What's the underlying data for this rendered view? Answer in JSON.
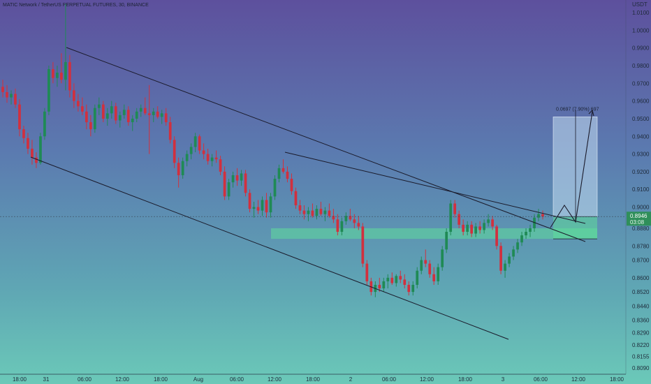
{
  "chart_data": {
    "type": "candlestick",
    "title": "MATIC Network / TetherUS PERPETUAL FUTURES, 30, BINANCE",
    "y_axis_label": "USDT",
    "y_ticks": [
      "1.0100",
      "1.0000",
      "0.9900",
      "0.9800",
      "0.9700",
      "0.9600",
      "0.9500",
      "0.9400",
      "0.9300",
      "0.9200",
      "0.9100",
      "0.9000",
      "0.8880",
      "0.8780",
      "0.8700",
      "0.8600",
      "0.8520",
      "0.8440",
      "0.8360",
      "0.8290",
      "0.8220",
      "0.8155",
      "0.8090"
    ],
    "x_ticks": [
      "18:00",
      "31",
      "06:00",
      "12:00",
      "18:00",
      "Aug",
      "06:00",
      "12:00",
      "18:00",
      "2",
      "06:00",
      "12:00",
      "18:00",
      "3",
      "06:00",
      "12:00",
      "18:00"
    ],
    "last_price": "0.8946",
    "countdown": "03:08",
    "projection_label": "0.0697 (7.90%) 697",
    "colors": {
      "up": "#1f8a55",
      "down": "#d1303e",
      "zone": "#5fdc9a",
      "projection": "#c3dcf0",
      "line": "#1a1a2a"
    },
    "series": [
      {
        "o": 0.968,
        "h": 0.972,
        "l": 0.962,
        "c": 0.965
      },
      {
        "o": 0.965,
        "h": 0.969,
        "l": 0.959,
        "c": 0.962
      },
      {
        "o": 0.962,
        "h": 0.966,
        "l": 0.958,
        "c": 0.964
      },
      {
        "o": 0.964,
        "h": 0.967,
        "l": 0.956,
        "c": 0.958
      },
      {
        "o": 0.958,
        "h": 0.961,
        "l": 0.94,
        "c": 0.944
      },
      {
        "o": 0.944,
        "h": 0.946,
        "l": 0.936,
        "c": 0.939
      },
      {
        "o": 0.939,
        "h": 0.942,
        "l": 0.93,
        "c": 0.933
      },
      {
        "o": 0.933,
        "h": 0.938,
        "l": 0.924,
        "c": 0.928
      },
      {
        "o": 0.928,
        "h": 0.931,
        "l": 0.922,
        "c": 0.925
      },
      {
        "o": 0.925,
        "h": 0.942,
        "l": 0.924,
        "c": 0.94
      },
      {
        "o": 0.94,
        "h": 0.956,
        "l": 0.938,
        "c": 0.954
      },
      {
        "o": 0.954,
        "h": 0.98,
        "l": 0.952,
        "c": 0.978
      },
      {
        "o": 0.978,
        "h": 0.982,
        "l": 0.97,
        "c": 0.973
      },
      {
        "o": 0.973,
        "h": 0.98,
        "l": 0.968,
        "c": 0.976
      },
      {
        "o": 0.976,
        "h": 0.987,
        "l": 0.97,
        "c": 0.972
      },
      {
        "o": 0.972,
        "h": 1.015,
        "l": 0.966,
        "c": 0.982
      },
      {
        "o": 0.982,
        "h": 0.986,
        "l": 0.962,
        "c": 0.966
      },
      {
        "o": 0.966,
        "h": 0.97,
        "l": 0.956,
        "c": 0.96
      },
      {
        "o": 0.96,
        "h": 0.964,
        "l": 0.954,
        "c": 0.957
      },
      {
        "o": 0.957,
        "h": 0.962,
        "l": 0.952,
        "c": 0.954
      },
      {
        "o": 0.954,
        "h": 0.958,
        "l": 0.944,
        "c": 0.948
      },
      {
        "o": 0.948,
        "h": 0.952,
        "l": 0.94,
        "c": 0.944
      },
      {
        "o": 0.944,
        "h": 0.958,
        "l": 0.942,
        "c": 0.956
      },
      {
        "o": 0.956,
        "h": 0.962,
        "l": 0.952,
        "c": 0.958
      },
      {
        "o": 0.958,
        "h": 0.96,
        "l": 0.948,
        "c": 0.95
      },
      {
        "o": 0.95,
        "h": 0.956,
        "l": 0.946,
        "c": 0.953
      },
      {
        "o": 0.953,
        "h": 0.96,
        "l": 0.95,
        "c": 0.957
      },
      {
        "o": 0.957,
        "h": 0.959,
        "l": 0.947,
        "c": 0.949
      },
      {
        "o": 0.949,
        "h": 0.954,
        "l": 0.945,
        "c": 0.952
      },
      {
        "o": 0.952,
        "h": 0.958,
        "l": 0.95,
        "c": 0.955
      },
      {
        "o": 0.955,
        "h": 0.957,
        "l": 0.946,
        "c": 0.948
      },
      {
        "o": 0.948,
        "h": 0.952,
        "l": 0.943,
        "c": 0.95
      },
      {
        "o": 0.95,
        "h": 0.956,
        "l": 0.948,
        "c": 0.954
      },
      {
        "o": 0.954,
        "h": 0.958,
        "l": 0.951,
        "c": 0.956
      },
      {
        "o": 0.956,
        "h": 0.962,
        "l": 0.952,
        "c": 0.953
      },
      {
        "o": 0.953,
        "h": 0.969,
        "l": 0.93,
        "c": 0.952
      },
      {
        "o": 0.952,
        "h": 0.956,
        "l": 0.948,
        "c": 0.954
      },
      {
        "o": 0.954,
        "h": 0.957,
        "l": 0.95,
        "c": 0.951
      },
      {
        "o": 0.951,
        "h": 0.955,
        "l": 0.947,
        "c": 0.953
      },
      {
        "o": 0.953,
        "h": 0.956,
        "l": 0.946,
        "c": 0.948
      },
      {
        "o": 0.948,
        "h": 0.951,
        "l": 0.936,
        "c": 0.938
      },
      {
        "o": 0.938,
        "h": 0.94,
        "l": 0.922,
        "c": 0.925
      },
      {
        "o": 0.925,
        "h": 0.928,
        "l": 0.911,
        "c": 0.918
      },
      {
        "o": 0.918,
        "h": 0.928,
        "l": 0.916,
        "c": 0.926
      },
      {
        "o": 0.926,
        "h": 0.932,
        "l": 0.923,
        "c": 0.93
      },
      {
        "o": 0.93,
        "h": 0.936,
        "l": 0.927,
        "c": 0.934
      },
      {
        "o": 0.934,
        "h": 0.942,
        "l": 0.931,
        "c": 0.94
      },
      {
        "o": 0.94,
        "h": 0.941,
        "l": 0.93,
        "c": 0.932
      },
      {
        "o": 0.932,
        "h": 0.936,
        "l": 0.927,
        "c": 0.93
      },
      {
        "o": 0.93,
        "h": 0.933,
        "l": 0.924,
        "c": 0.926
      },
      {
        "o": 0.926,
        "h": 0.93,
        "l": 0.923,
        "c": 0.928
      },
      {
        "o": 0.928,
        "h": 0.932,
        "l": 0.925,
        "c": 0.927
      },
      {
        "o": 0.927,
        "h": 0.929,
        "l": 0.918,
        "c": 0.92
      },
      {
        "o": 0.92,
        "h": 0.923,
        "l": 0.904,
        "c": 0.906
      },
      {
        "o": 0.906,
        "h": 0.916,
        "l": 0.904,
        "c": 0.914
      },
      {
        "o": 0.914,
        "h": 0.92,
        "l": 0.911,
        "c": 0.918
      },
      {
        "o": 0.918,
        "h": 0.922,
        "l": 0.912,
        "c": 0.915
      },
      {
        "o": 0.915,
        "h": 0.921,
        "l": 0.912,
        "c": 0.919
      },
      {
        "o": 0.919,
        "h": 0.921,
        "l": 0.906,
        "c": 0.908
      },
      {
        "o": 0.908,
        "h": 0.91,
        "l": 0.897,
        "c": 0.899
      },
      {
        "o": 0.899,
        "h": 0.903,
        "l": 0.894,
        "c": 0.9
      },
      {
        "o": 0.9,
        "h": 0.904,
        "l": 0.896,
        "c": 0.898
      },
      {
        "o": 0.898,
        "h": 0.906,
        "l": 0.895,
        "c": 0.904
      },
      {
        "o": 0.904,
        "h": 0.908,
        "l": 0.894,
        "c": 0.897
      },
      {
        "o": 0.897,
        "h": 0.908,
        "l": 0.894,
        "c": 0.906
      },
      {
        "o": 0.906,
        "h": 0.918,
        "l": 0.904,
        "c": 0.916
      },
      {
        "o": 0.916,
        "h": 0.924,
        "l": 0.914,
        "c": 0.922
      },
      {
        "o": 0.922,
        "h": 0.927,
        "l": 0.919,
        "c": 0.92
      },
      {
        "o": 0.92,
        "h": 0.923,
        "l": 0.914,
        "c": 0.916
      },
      {
        "o": 0.916,
        "h": 0.919,
        "l": 0.907,
        "c": 0.909
      },
      {
        "o": 0.909,
        "h": 0.911,
        "l": 0.899,
        "c": 0.901
      },
      {
        "o": 0.901,
        "h": 0.904,
        "l": 0.896,
        "c": 0.898
      },
      {
        "o": 0.898,
        "h": 0.901,
        "l": 0.893,
        "c": 0.896
      },
      {
        "o": 0.896,
        "h": 0.9,
        "l": 0.892,
        "c": 0.898
      },
      {
        "o": 0.898,
        "h": 0.902,
        "l": 0.894,
        "c": 0.895
      },
      {
        "o": 0.895,
        "h": 0.901,
        "l": 0.893,
        "c": 0.899
      },
      {
        "o": 0.899,
        "h": 0.903,
        "l": 0.895,
        "c": 0.896
      },
      {
        "o": 0.896,
        "h": 0.9,
        "l": 0.892,
        "c": 0.898
      },
      {
        "o": 0.898,
        "h": 0.902,
        "l": 0.894,
        "c": 0.895
      },
      {
        "o": 0.895,
        "h": 0.899,
        "l": 0.891,
        "c": 0.893
      },
      {
        "o": 0.893,
        "h": 0.896,
        "l": 0.884,
        "c": 0.886
      },
      {
        "o": 0.886,
        "h": 0.894,
        "l": 0.884,
        "c": 0.892
      },
      {
        "o": 0.892,
        "h": 0.897,
        "l": 0.89,
        "c": 0.895
      },
      {
        "o": 0.895,
        "h": 0.899,
        "l": 0.892,
        "c": 0.893
      },
      {
        "o": 0.893,
        "h": 0.896,
        "l": 0.888,
        "c": 0.891
      },
      {
        "o": 0.891,
        "h": 0.895,
        "l": 0.887,
        "c": 0.889
      },
      {
        "o": 0.889,
        "h": 0.891,
        "l": 0.866,
        "c": 0.868
      },
      {
        "o": 0.868,
        "h": 0.87,
        "l": 0.856,
        "c": 0.858
      },
      {
        "o": 0.858,
        "h": 0.86,
        "l": 0.85,
        "c": 0.852
      },
      {
        "o": 0.852,
        "h": 0.858,
        "l": 0.849,
        "c": 0.856
      },
      {
        "o": 0.856,
        "h": 0.86,
        "l": 0.852,
        "c": 0.854
      },
      {
        "o": 0.854,
        "h": 0.86,
        "l": 0.852,
        "c": 0.858
      },
      {
        "o": 0.858,
        "h": 0.862,
        "l": 0.854,
        "c": 0.86
      },
      {
        "o": 0.86,
        "h": 0.863,
        "l": 0.856,
        "c": 0.857
      },
      {
        "o": 0.857,
        "h": 0.862,
        "l": 0.855,
        "c": 0.861
      },
      {
        "o": 0.861,
        "h": 0.864,
        "l": 0.857,
        "c": 0.859
      },
      {
        "o": 0.859,
        "h": 0.862,
        "l": 0.854,
        "c": 0.856
      },
      {
        "o": 0.856,
        "h": 0.858,
        "l": 0.85,
        "c": 0.852
      },
      {
        "o": 0.852,
        "h": 0.858,
        "l": 0.85,
        "c": 0.856
      },
      {
        "o": 0.856,
        "h": 0.866,
        "l": 0.854,
        "c": 0.864
      },
      {
        "o": 0.864,
        "h": 0.872,
        "l": 0.862,
        "c": 0.87
      },
      {
        "o": 0.87,
        "h": 0.876,
        "l": 0.866,
        "c": 0.868
      },
      {
        "o": 0.868,
        "h": 0.87,
        "l": 0.86,
        "c": 0.862
      },
      {
        "o": 0.862,
        "h": 0.866,
        "l": 0.856,
        "c": 0.858
      },
      {
        "o": 0.858,
        "h": 0.868,
        "l": 0.856,
        "c": 0.866
      },
      {
        "o": 0.866,
        "h": 0.878,
        "l": 0.864,
        "c": 0.876
      },
      {
        "o": 0.876,
        "h": 0.888,
        "l": 0.874,
        "c": 0.886
      },
      {
        "o": 0.886,
        "h": 0.904,
        "l": 0.884,
        "c": 0.902
      },
      {
        "o": 0.902,
        "h": 0.904,
        "l": 0.894,
        "c": 0.896
      },
      {
        "o": 0.896,
        "h": 0.898,
        "l": 0.888,
        "c": 0.89
      },
      {
        "o": 0.89,
        "h": 0.893,
        "l": 0.884,
        "c": 0.886
      },
      {
        "o": 0.886,
        "h": 0.892,
        "l": 0.884,
        "c": 0.89
      },
      {
        "o": 0.89,
        "h": 0.892,
        "l": 0.883,
        "c": 0.885
      },
      {
        "o": 0.885,
        "h": 0.891,
        "l": 0.883,
        "c": 0.889
      },
      {
        "o": 0.889,
        "h": 0.892,
        "l": 0.885,
        "c": 0.887
      },
      {
        "o": 0.887,
        "h": 0.893,
        "l": 0.885,
        "c": 0.891
      },
      {
        "o": 0.891,
        "h": 0.896,
        "l": 0.889,
        "c": 0.893
      },
      {
        "o": 0.893,
        "h": 0.895,
        "l": 0.887,
        "c": 0.889
      },
      {
        "o": 0.889,
        "h": 0.89,
        "l": 0.876,
        "c": 0.878
      },
      {
        "o": 0.878,
        "h": 0.88,
        "l": 0.862,
        "c": 0.864
      },
      {
        "o": 0.864,
        "h": 0.87,
        "l": 0.86,
        "c": 0.868
      },
      {
        "o": 0.868,
        "h": 0.874,
        "l": 0.866,
        "c": 0.872
      },
      {
        "o": 0.872,
        "h": 0.878,
        "l": 0.87,
        "c": 0.876
      },
      {
        "o": 0.876,
        "h": 0.882,
        "l": 0.874,
        "c": 0.88
      },
      {
        "o": 0.88,
        "h": 0.886,
        "l": 0.878,
        "c": 0.884
      },
      {
        "o": 0.884,
        "h": 0.888,
        "l": 0.882,
        "c": 0.886
      },
      {
        "o": 0.886,
        "h": 0.89,
        "l": 0.883,
        "c": 0.888
      },
      {
        "o": 0.888,
        "h": 0.896,
        "l": 0.886,
        "c": 0.894
      },
      {
        "o": 0.894,
        "h": 0.899,
        "l": 0.892,
        "c": 0.896
      },
      {
        "o": 0.896,
        "h": 0.898,
        "l": 0.893,
        "c": 0.8946
      }
    ]
  }
}
